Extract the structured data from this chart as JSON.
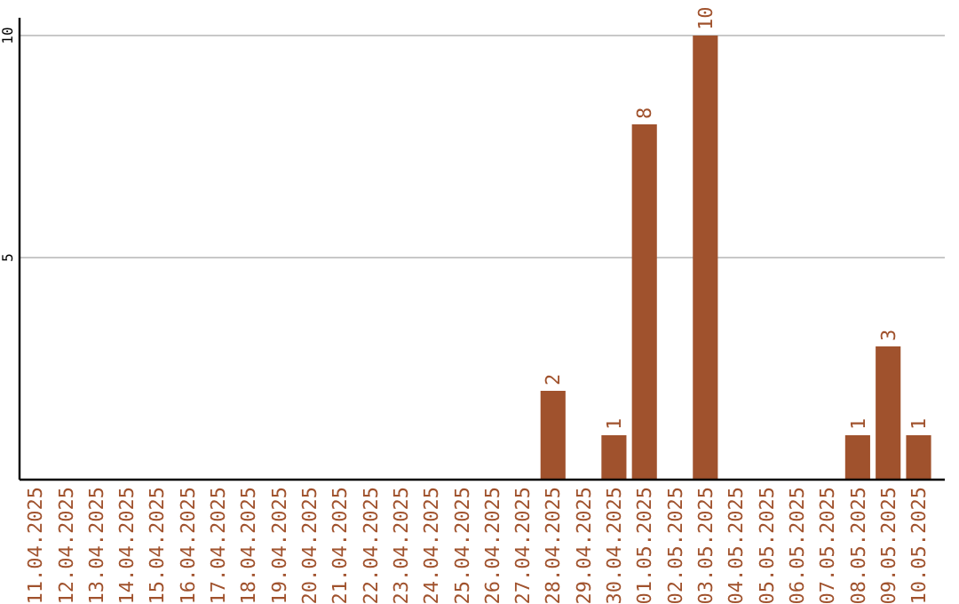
{
  "chart_data": {
    "type": "bar",
    "categories": [
      "11.04.2025",
      "12.04.2025",
      "13.04.2025",
      "14.04.2025",
      "15.04.2025",
      "16.04.2025",
      "17.04.2025",
      "18.04.2025",
      "19.04.2025",
      "20.04.2025",
      "21.04.2025",
      "22.04.2025",
      "23.04.2025",
      "24.04.2025",
      "25.04.2025",
      "26.04.2025",
      "27.04.2025",
      "28.04.2025",
      "29.04.2025",
      "30.04.2025",
      "01.05.2025",
      "02.05.2025",
      "03.05.2025",
      "04.05.2025",
      "05.05.2025",
      "06.05.2025",
      "07.05.2025",
      "08.05.2025",
      "09.05.2025",
      "10.05.2025"
    ],
    "values": [
      0,
      0,
      0,
      0,
      0,
      0,
      0,
      0,
      0,
      0,
      0,
      0,
      0,
      0,
      0,
      0,
      0,
      2,
      0,
      1,
      8,
      0,
      10,
      0,
      0,
      0,
      0,
      1,
      3,
      1
    ],
    "value_labels": [
      null,
      null,
      null,
      null,
      null,
      null,
      null,
      null,
      null,
      null,
      null,
      null,
      null,
      null,
      null,
      null,
      null,
      "2",
      null,
      "1",
      "8",
      null,
      "10",
      null,
      null,
      null,
      null,
      "1",
      "3",
      "1"
    ],
    "color": "#a0522d",
    "ylim": [
      0,
      10.4
    ],
    "yticks": [
      5,
      10
    ],
    "grid": "y"
  }
}
